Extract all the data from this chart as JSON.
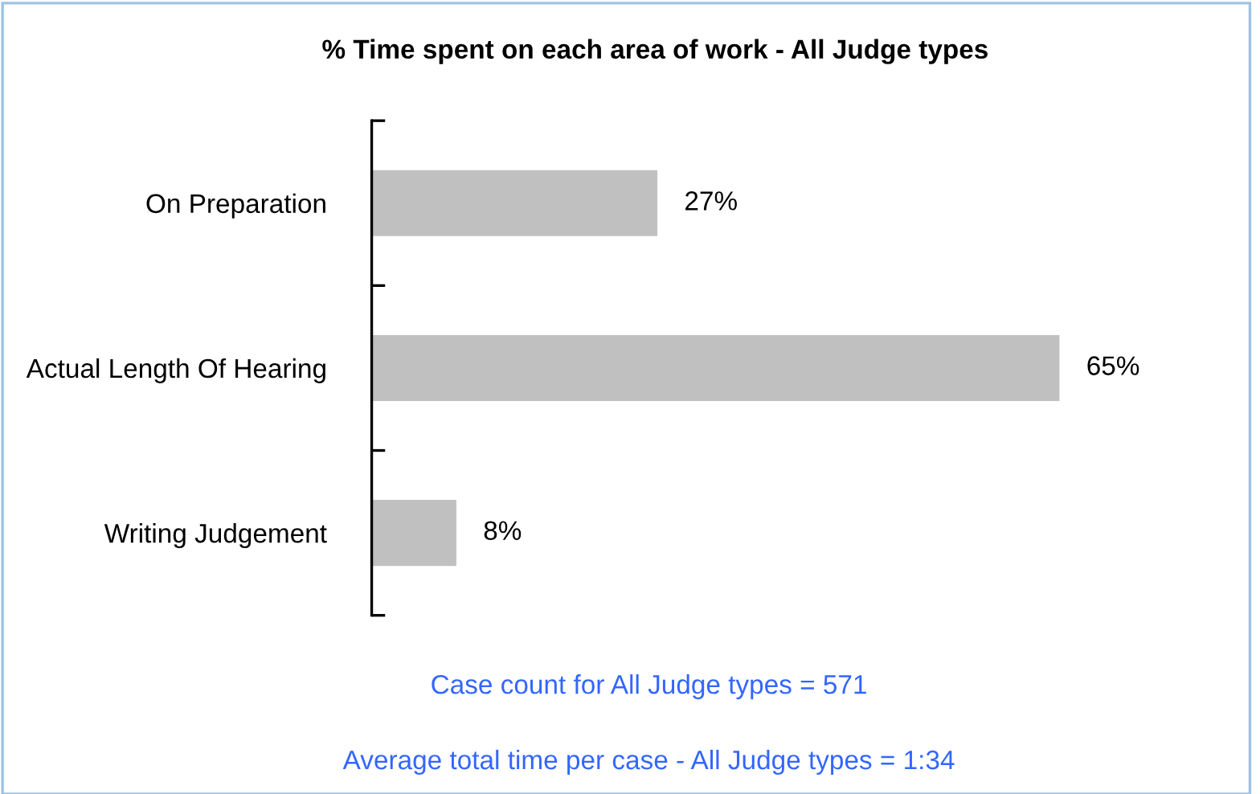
{
  "chart_data": {
    "type": "bar",
    "orientation": "horizontal",
    "title": "% Time spent on each area of work - All Judge types",
    "categories": [
      "On Preparation",
      "Actual Length Of Hearing",
      "Writing Judgement"
    ],
    "values": [
      27,
      65,
      8
    ],
    "color": "#c0c0c0",
    "value_labels": [
      "27%",
      "65%",
      "8%"
    ],
    "grid": false,
    "legend": false,
    "tick_labels": "y",
    "annotations": [
      "Case count for All Judge types = 571",
      "Average total time per case - All Judge types = 1:34"
    ]
  }
}
